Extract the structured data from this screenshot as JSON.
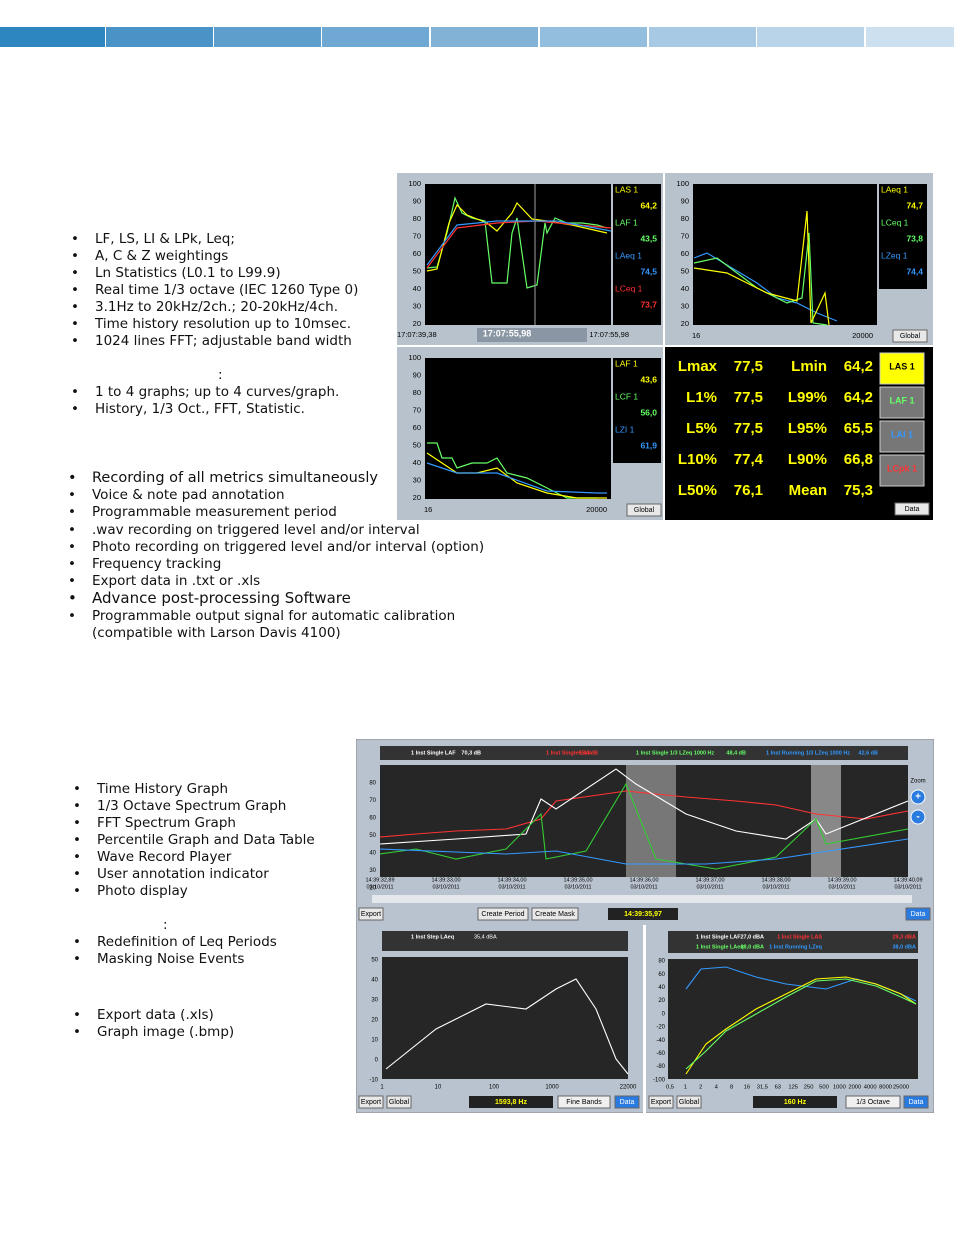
{
  "list_1": [
    "LF, LS, LI & LPk, Leq;",
    "A, C & Z weightings",
    "Ln Statistics (L0.1 to L99.9)",
    "Real time 1/3 octave (IEC 1260 Type 0)",
    "3.1Hz to 20kHz/2ch.; 20-20kHz/4ch.",
    "Time history resolution up to 10msec.",
    "1024 lines FFT; adjustable band width"
  ],
  "list_2_heading": ":",
  "list_2": [
    "1 to 4 graphs; up to 4 curves/graph.",
    "History, 1/3 Oct., FFT, Statistic."
  ],
  "list_3": [
    "Recording of all metrics simultaneously",
    "Voice & note pad annotation",
    "Programmable measurement period",
    ".wav recording on triggered level and/or interval",
    "Photo recording on triggered level and/or interval (option)",
    "Frequency tracking",
    "Export data in .txt or .xls",
    "Advance post-processing Software",
    "Programmable output signal for automatic calibration"
  ],
  "list_3_continuation": "(compatible with Larson Davis 4100)",
  "screenshot_1": {
    "panel_1": {
      "y_ticks": [
        "100",
        "90",
        "80",
        "70",
        "60",
        "50",
        "40",
        "30",
        "20"
      ],
      "legend": [
        [
          "LAS 1",
          "64,2"
        ],
        [
          "LAF 1",
          "43,5"
        ],
        [
          "LAeq 1",
          "74,5"
        ],
        [
          "LCeq 1",
          "73,7"
        ]
      ],
      "x_labels": [
        "17:07:39,38",
        "17:07:55,98",
        "17:07:55,98"
      ]
    },
    "panel_2": {
      "y_ticks": [
        "100",
        "90",
        "80",
        "70",
        "60",
        "50",
        "40",
        "30",
        "20"
      ],
      "legend": [
        [
          "LAeq 1",
          "74,7"
        ],
        [
          "LCeq 1",
          "73,8"
        ],
        [
          "LZeq 1",
          "74,4"
        ]
      ],
      "x_labels": [
        "16",
        "20000"
      ],
      "button": "Global"
    },
    "panel_3": {
      "y_ticks": [
        "100",
        "90",
        "80",
        "70",
        "60",
        "50",
        "40",
        "30",
        "20"
      ],
      "legend": [
        [
          "LAF 1",
          "43,6"
        ],
        [
          "LCF 1",
          "56,0"
        ],
        [
          "LZI 1",
          "61,9"
        ]
      ],
      "x_labels": [
        "16",
        "20000"
      ],
      "button": "Global"
    },
    "stats": [
      [
        "Lmax",
        "77,5",
        "Lmin",
        "64,2"
      ],
      [
        "L1%",
        "77,5",
        "L99%",
        "64,2"
      ],
      [
        "L5%",
        "77,5",
        "L95%",
        "65,5"
      ],
      [
        "L10%",
        "77,4",
        "L90%",
        "66,8"
      ],
      [
        "L50%",
        "76,1",
        "Mean",
        "75,3"
      ]
    ],
    "channel_buttons": [
      "LAS 1",
      "LAF 1",
      "LAI 1",
      "LCpk 1"
    ],
    "data_button": "Data"
  },
  "list_4": [
    "Time History Graph",
    "1/3 Octave Spectrum Graph",
    "FFT Spectrum Graph",
    "Percentile Graph and Data Table",
    "Wave Record Player",
    "User annotation indicator",
    "Photo display"
  ],
  "list_5_heading": ":",
  "list_5": [
    "Redefinition of Leq Periods",
    "Masking Noise Events"
  ],
  "list_6": [
    "Export data (.xls)",
    "Graph image (.bmp)"
  ],
  "screenshot_2": {
    "top_legend": [
      "1 Inst Single LAF",
      "70,3 dB",
      "1 Inst Single LAS",
      "65,4 dB",
      "1 Inst Single 1/3 LZeq 1000 Hz",
      "48,4 dB",
      "1 Inst Running 1/3 LZeq 1000 Hz",
      "42,6 dB"
    ],
    "y_ticks": [
      "80",
      "70",
      "60",
      "50",
      "40",
      "30",
      "20"
    ],
    "x_labels": [
      [
        "14:39:32,89",
        "03/10/2011"
      ],
      [
        "14:39:33,00",
        "03/10/2011"
      ],
      [
        "14:39:34,00",
        "03/10/2011"
      ],
      [
        "14:39:35,00",
        "03/10/2011"
      ],
      [
        "14:39:36,00",
        "03/10/2011"
      ],
      [
        "14:39:37,00",
        "03/10/2011"
      ],
      [
        "14:39:38,00",
        "03/10/2011"
      ],
      [
        "14:39:39,00",
        "03/10/2011"
      ],
      [
        "14:39:40,09",
        "03/10/2011"
      ]
    ],
    "zoom": "Zoom",
    "zoom_in": "+",
    "zoom_out": "-",
    "buttons": [
      "Export",
      "Create Period",
      "Create Mask",
      "Data"
    ],
    "cursor_time": "14:39:35,97",
    "fft": {
      "legend": [
        "1 Inst Step LAeq",
        "35,4 dBA"
      ],
      "y_ticks": [
        "50",
        "40",
        "30",
        "20",
        "10",
        "0",
        "-10"
      ],
      "x_labels": [
        "1",
        "10",
        "100",
        "1000",
        "22000"
      ],
      "buttons": [
        "Export",
        "Global"
      ],
      "cursor": "1593,8 Hz",
      "mode": "Fine Bands",
      "data": "Data"
    },
    "octave": {
      "legend": [
        "1 Inst Single LAF",
        "27,0 dBA",
        "1 Inst Single LAS",
        "29,3 dBA",
        "1 Inst Single LAeq",
        "28,0 dBA",
        "1 Inst Running LZeq",
        "38,0 dBA"
      ],
      "y_ticks": [
        "80",
        "60",
        "40",
        "20",
        "0",
        "-20",
        "-40",
        "-60",
        "-80",
        "-100"
      ],
      "x_labels": [
        "0,5",
        "1",
        "2",
        "4",
        "8",
        "16",
        "31,5",
        "63",
        "125",
        "250",
        "500",
        "1000",
        "2000",
        "4000",
        "8000",
        "25000"
      ],
      "buttons": [
        "Export",
        "Global"
      ],
      "cursor": "160 Hz",
      "mode": "1/3 Octave",
      "data": "Data"
    }
  }
}
